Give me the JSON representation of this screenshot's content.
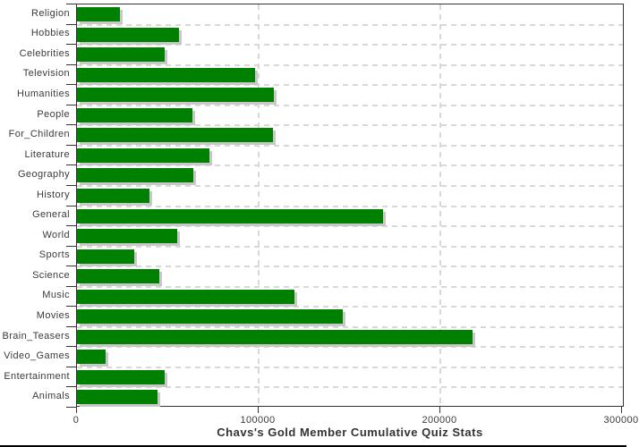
{
  "chart_data": {
    "type": "bar",
    "orientation": "horizontal",
    "title": "Chavs's Gold Member Cumulative Quiz Stats",
    "categories": [
      "Religion",
      "Hobbies",
      "Celebrities",
      "Television",
      "Humanities",
      "People",
      "For_Children",
      "Literature",
      "Geography",
      "History",
      "General",
      "World",
      "Sports",
      "Science",
      "Music",
      "Movies",
      "Brain_Teasers",
      "Video_Games",
      "Entertainment",
      "Animals"
    ],
    "values": [
      23500,
      56100,
      48300,
      98000,
      108400,
      63500,
      107900,
      72900,
      64000,
      39900,
      168500,
      55200,
      31500,
      45300,
      119700,
      146300,
      217700,
      15800,
      48300,
      44300
    ],
    "x_ticks": [
      0,
      100000,
      200000,
      300000
    ],
    "x_tick_labels": [
      "0",
      "100000",
      "200000",
      "300000"
    ],
    "xlim": [
      0,
      300000
    ],
    "xlabel": "",
    "ylabel": "",
    "grid": "dashed vertical at 100000/200000, dashed horizontal at category boundaries",
    "legend_position": "none",
    "colors": {
      "bar": "#008000",
      "bar_shadow": "#c8c8c8",
      "grid": "#d8d8d8",
      "axis": "#333333",
      "text": "#3a3a3a",
      "background": "#ffffff",
      "bottom_rule": "#000000"
    }
  }
}
